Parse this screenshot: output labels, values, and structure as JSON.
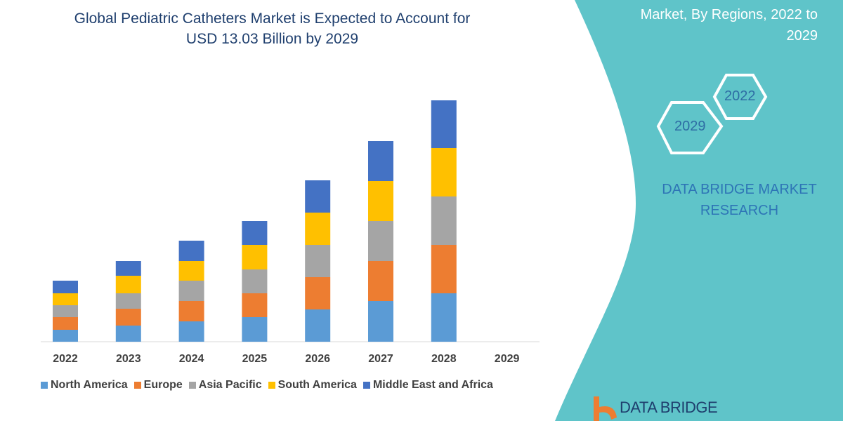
{
  "header": {
    "title_line1": "Global Pediatric Catheters Market is Expected to Account for",
    "title_line2": "USD 13.03 Billion by 2029"
  },
  "side_panel": {
    "title_line1": "Market, By Regions, 2022 to",
    "title_line2": "2029",
    "hex_1": "2022",
    "hex_2": "2029",
    "brand_line1": "DATA BRIDGE MARKET",
    "brand_line2": "RESEARCH",
    "logo_text": "DATA BRIDGE",
    "panel_color": "#5fc4c9"
  },
  "chart_data": {
    "type": "bar",
    "stacked": true,
    "title": "Global Pediatric Catheters Market is Expected to Account for USD 13.03 Billion by 2029",
    "xlabel": "",
    "ylabel": "",
    "y_axis_shown": false,
    "grid": false,
    "legend_position": "bottom",
    "categories": [
      "2022",
      "2023",
      "2024",
      "2025",
      "2026",
      "2027",
      "2028",
      "2029"
    ],
    "ylim": [
      0,
      350
    ],
    "series": [
      {
        "name": "North America",
        "color": "#5b9bd5",
        "values": [
          17,
          23,
          29,
          35,
          46,
          58,
          69,
          null
        ]
      },
      {
        "name": "Europe",
        "color": "#ed7d31",
        "values": [
          18,
          24,
          29,
          34,
          46,
          57,
          69,
          null
        ]
      },
      {
        "name": "Asia Pacific",
        "color": "#a5a5a5",
        "values": [
          17,
          22,
          29,
          34,
          46,
          57,
          69,
          null
        ]
      },
      {
        "name": "South America",
        "color": "#ffc000",
        "values": [
          17,
          25,
          28,
          35,
          46,
          57,
          69,
          null
        ]
      },
      {
        "name": "Middle East and Africa",
        "color": "#4472c4",
        "values": [
          18,
          21,
          29,
          34,
          46,
          57,
          68,
          null
        ]
      }
    ]
  }
}
